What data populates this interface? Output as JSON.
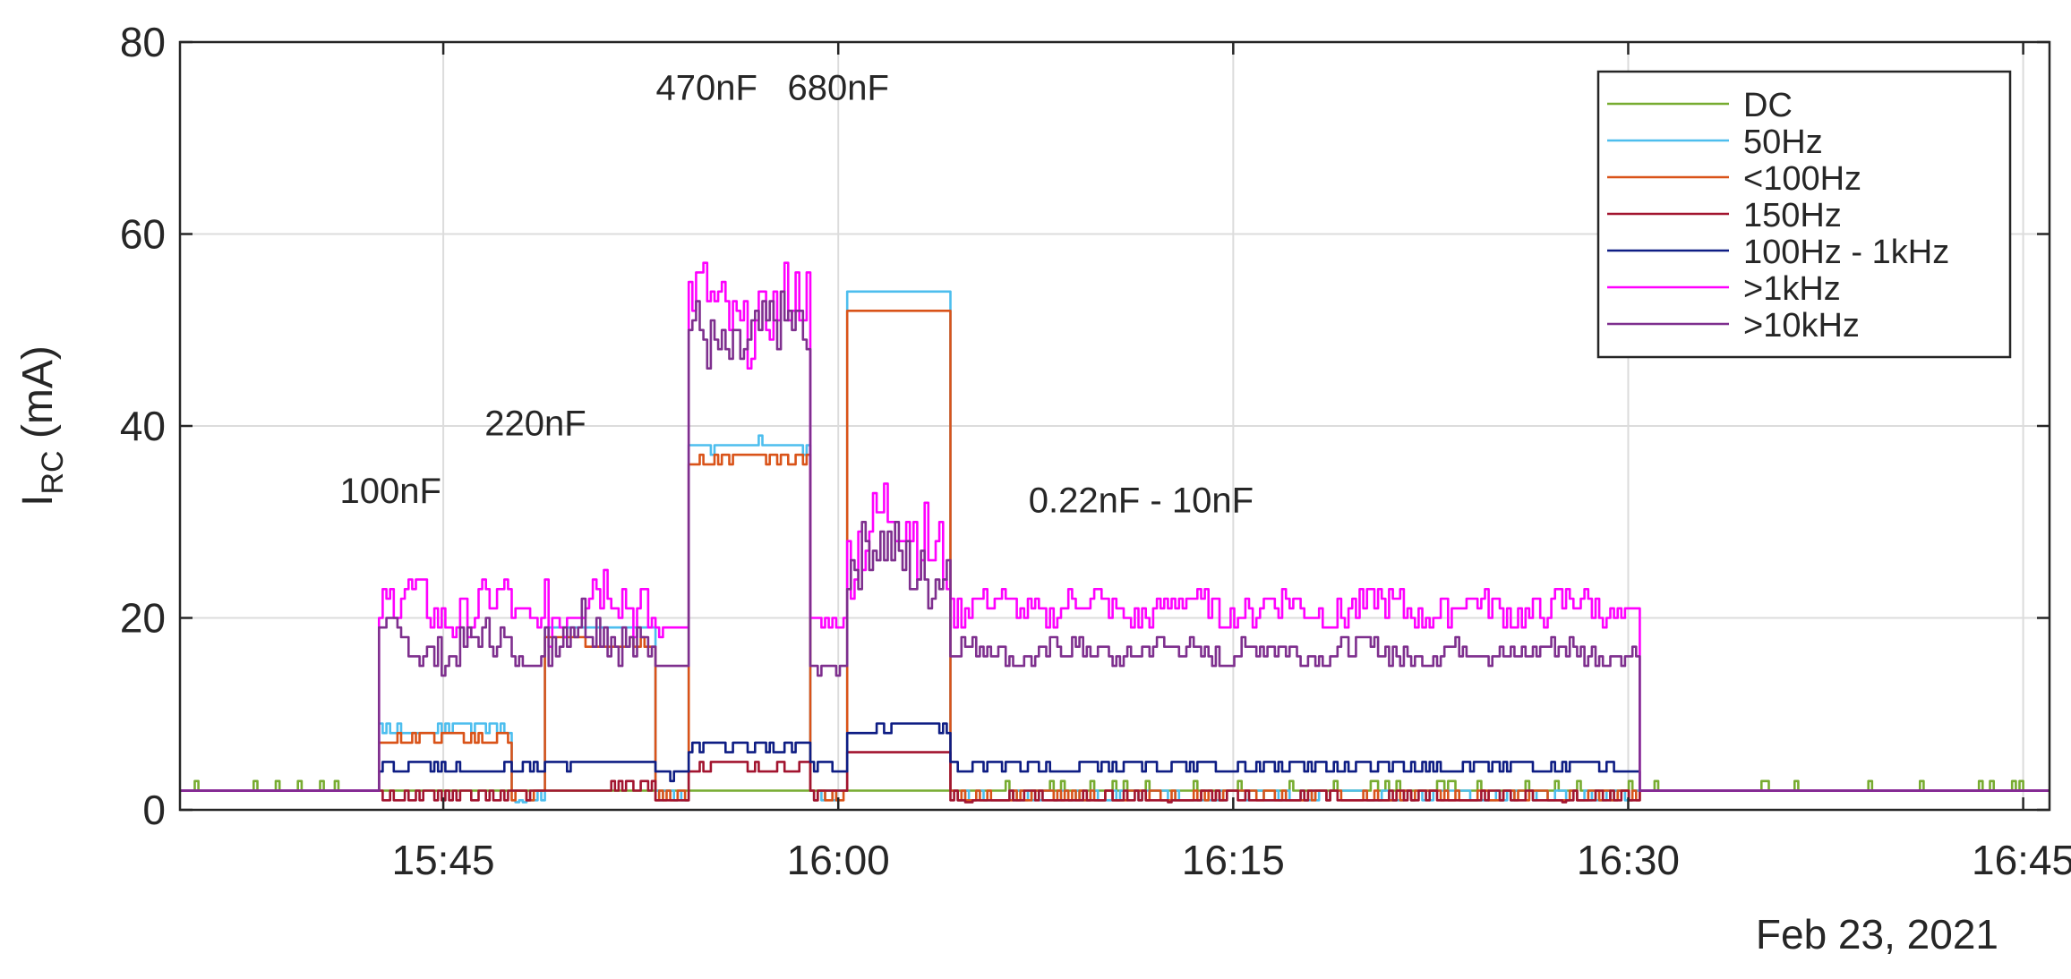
{
  "chart_data": {
    "type": "line",
    "title": "",
    "xlabel": "",
    "ylabel": {
      "main": "I",
      "sub": "RC",
      "unit": " (mA)"
    },
    "date_label": "Feb 23, 2021",
    "x_range": [
      "15:35",
      "16:46"
    ],
    "ylim": [
      0,
      80
    ],
    "y_ticks": [
      "0",
      "20",
      "40",
      "60",
      "80"
    ],
    "x_ticks": [
      {
        "t": "15:45",
        "label": "15:45"
      },
      {
        "t": "16:00",
        "label": "16:00"
      },
      {
        "t": "16:15",
        "label": "16:15"
      },
      {
        "t": "16:30",
        "label": "16:30"
      },
      {
        "t": "16:45",
        "label": "16:45"
      }
    ],
    "grid": true,
    "legend_position": "top-right",
    "annotations": [
      {
        "text": "100nF",
        "t": "15:43",
        "y": 32
      },
      {
        "text": "220nF",
        "t": "15:48.5",
        "y": 39
      },
      {
        "text": "470nF",
        "t": "15:55",
        "y": 74
      },
      {
        "text": "680nF",
        "t": "16:00",
        "y": 74
      },
      {
        "text": "0.22nF - 10nF",
        "t": "16:11.5",
        "y": 31
      }
    ],
    "series": [
      {
        "name": "DC",
        "color": "#77AC30",
        "segments": [
          [
            "15:35",
            1.5,
            0
          ],
          [
            "15:42.5",
            1.5,
            0
          ],
          [
            "15:47.5",
            1.5,
            0
          ],
          [
            "15:48.8",
            1.5,
            0
          ],
          [
            "15:53",
            1.5,
            0
          ],
          [
            "15:54.2",
            1.5,
            0
          ],
          [
            "15:58.8",
            1.5,
            0
          ],
          [
            "16:00.3",
            1.5,
            0
          ],
          [
            "16:04.2",
            1.5,
            0
          ],
          [
            "16:30.3",
            1.5,
            0
          ],
          [
            "16:46",
            1.5,
            0
          ]
        ],
        "noise": 2.0,
        "seed": 1
      },
      {
        "name": "50Hz",
        "color": "#4DBEEE",
        "segments": [
          [
            "15:35",
            1.5,
            0
          ],
          [
            "15:42.5",
            8.5,
            0.5
          ],
          [
            "15:47.5",
            1.5,
            0.8
          ],
          [
            "15:48.8",
            19,
            0.2
          ],
          [
            "15:53",
            1.5,
            0.8
          ],
          [
            "15:54.2",
            38,
            0.4
          ],
          [
            "15:58.8",
            1.5,
            0.5
          ],
          [
            "16:00.3",
            54,
            0
          ],
          [
            "16:04.2",
            1.5,
            0.5
          ],
          [
            "16:30.3",
            1.5,
            0
          ],
          [
            "16:46",
            1.5,
            0
          ]
        ],
        "noise": 0.6,
        "seed": 2
      },
      {
        "name": "<100Hz",
        "color": "#D95319",
        "segments": [
          [
            "15:35",
            1.5,
            0
          ],
          [
            "15:42.5",
            7.5,
            0.6
          ],
          [
            "15:47.5",
            1.5,
            0.8
          ],
          [
            "15:48.8",
            17.5,
            0.4
          ],
          [
            "15:53",
            1.5,
            0.8
          ],
          [
            "15:54.2",
            36.5,
            0.5
          ],
          [
            "15:58.8",
            1.5,
            0.5
          ],
          [
            "16:00.3",
            52,
            0.3
          ],
          [
            "16:04.2",
            1.5,
            0.5
          ],
          [
            "16:30.3",
            1.5,
            0
          ],
          [
            "16:46",
            1.5,
            0
          ]
        ],
        "noise": 0.6,
        "seed": 3
      },
      {
        "name": "150Hz",
        "color": "#A2142F",
        "segments": [
          [
            "15:35",
            1.5,
            0
          ],
          [
            "15:42.5",
            1.5,
            0.6
          ],
          [
            "15:47.5",
            1.5,
            0.6
          ],
          [
            "15:48.8",
            2.2,
            0.5
          ],
          [
            "15:53",
            1.5,
            0.6
          ],
          [
            "15:54.2",
            4.5,
            0.5
          ],
          [
            "15:58.8",
            1.5,
            0.5
          ],
          [
            "16:00.3",
            6,
            0
          ],
          [
            "16:04.2",
            1.2,
            0.5
          ],
          [
            "16:30.3",
            1.5,
            0
          ],
          [
            "16:46",
            1.5,
            0
          ]
        ],
        "noise": 0.4,
        "seed": 4
      },
      {
        "name": "100Hz - 1kHz",
        "color": "#0E1D84",
        "segments": [
          [
            "15:35",
            1.5,
            0
          ],
          [
            "15:42.5",
            4.5,
            0.6
          ],
          [
            "15:47.5",
            4.2,
            0.5
          ],
          [
            "15:48.8",
            5,
            0.5
          ],
          [
            "15:53",
            4.2,
            0.5
          ],
          [
            "15:54.2",
            6.5,
            0.3
          ],
          [
            "15:58.8",
            4.2,
            0.4
          ],
          [
            "16:00.3",
            8.5,
            0.3
          ],
          [
            "16:04.2",
            4.5,
            0.4
          ],
          [
            "16:30.3",
            1.5,
            0
          ],
          [
            "16:46",
            1.5,
            0
          ]
        ],
        "noise": 0.3,
        "seed": 5
      },
      {
        "name": ">1kHz",
        "color": "#FF00FF",
        "segments": [
          [
            "15:35",
            1.5,
            0
          ],
          [
            "15:42.5",
            21,
            2.5
          ],
          [
            "15:47.5",
            20,
            1.0
          ],
          [
            "15:48.8",
            22,
            3.5
          ],
          [
            "15:53",
            19,
            0.7
          ],
          [
            "15:54.2",
            52,
            3.5
          ],
          [
            "15:58.8",
            19.5,
            0.7
          ],
          [
            "16:00.3",
            29,
            4.5
          ],
          [
            "16:04.2",
            21,
            1.6
          ],
          [
            "16:30.3",
            1.5,
            0
          ],
          [
            "16:46",
            1.5,
            0
          ]
        ],
        "noise": 0.6,
        "seed": 6
      },
      {
        "name": ">10kHz",
        "color": "#7E2F8E",
        "segments": [
          [
            "15:35",
            1.5,
            0
          ],
          [
            "15:42.5",
            17,
            2.0
          ],
          [
            "15:47.5",
            15.5,
            0.6
          ],
          [
            "15:48.8",
            18.5,
            2.8
          ],
          [
            "15:53",
            15,
            0.5
          ],
          [
            "15:54.2",
            49,
            3.5
          ],
          [
            "15:58.8",
            15,
            0.5
          ],
          [
            "16:00.3",
            26,
            3.5
          ],
          [
            "16:04.2",
            16.5,
            1.2
          ],
          [
            "16:30.3",
            1.5,
            0
          ],
          [
            "16:46",
            1.5,
            0
          ]
        ],
        "noise": 0.5,
        "seed": 7
      }
    ]
  }
}
